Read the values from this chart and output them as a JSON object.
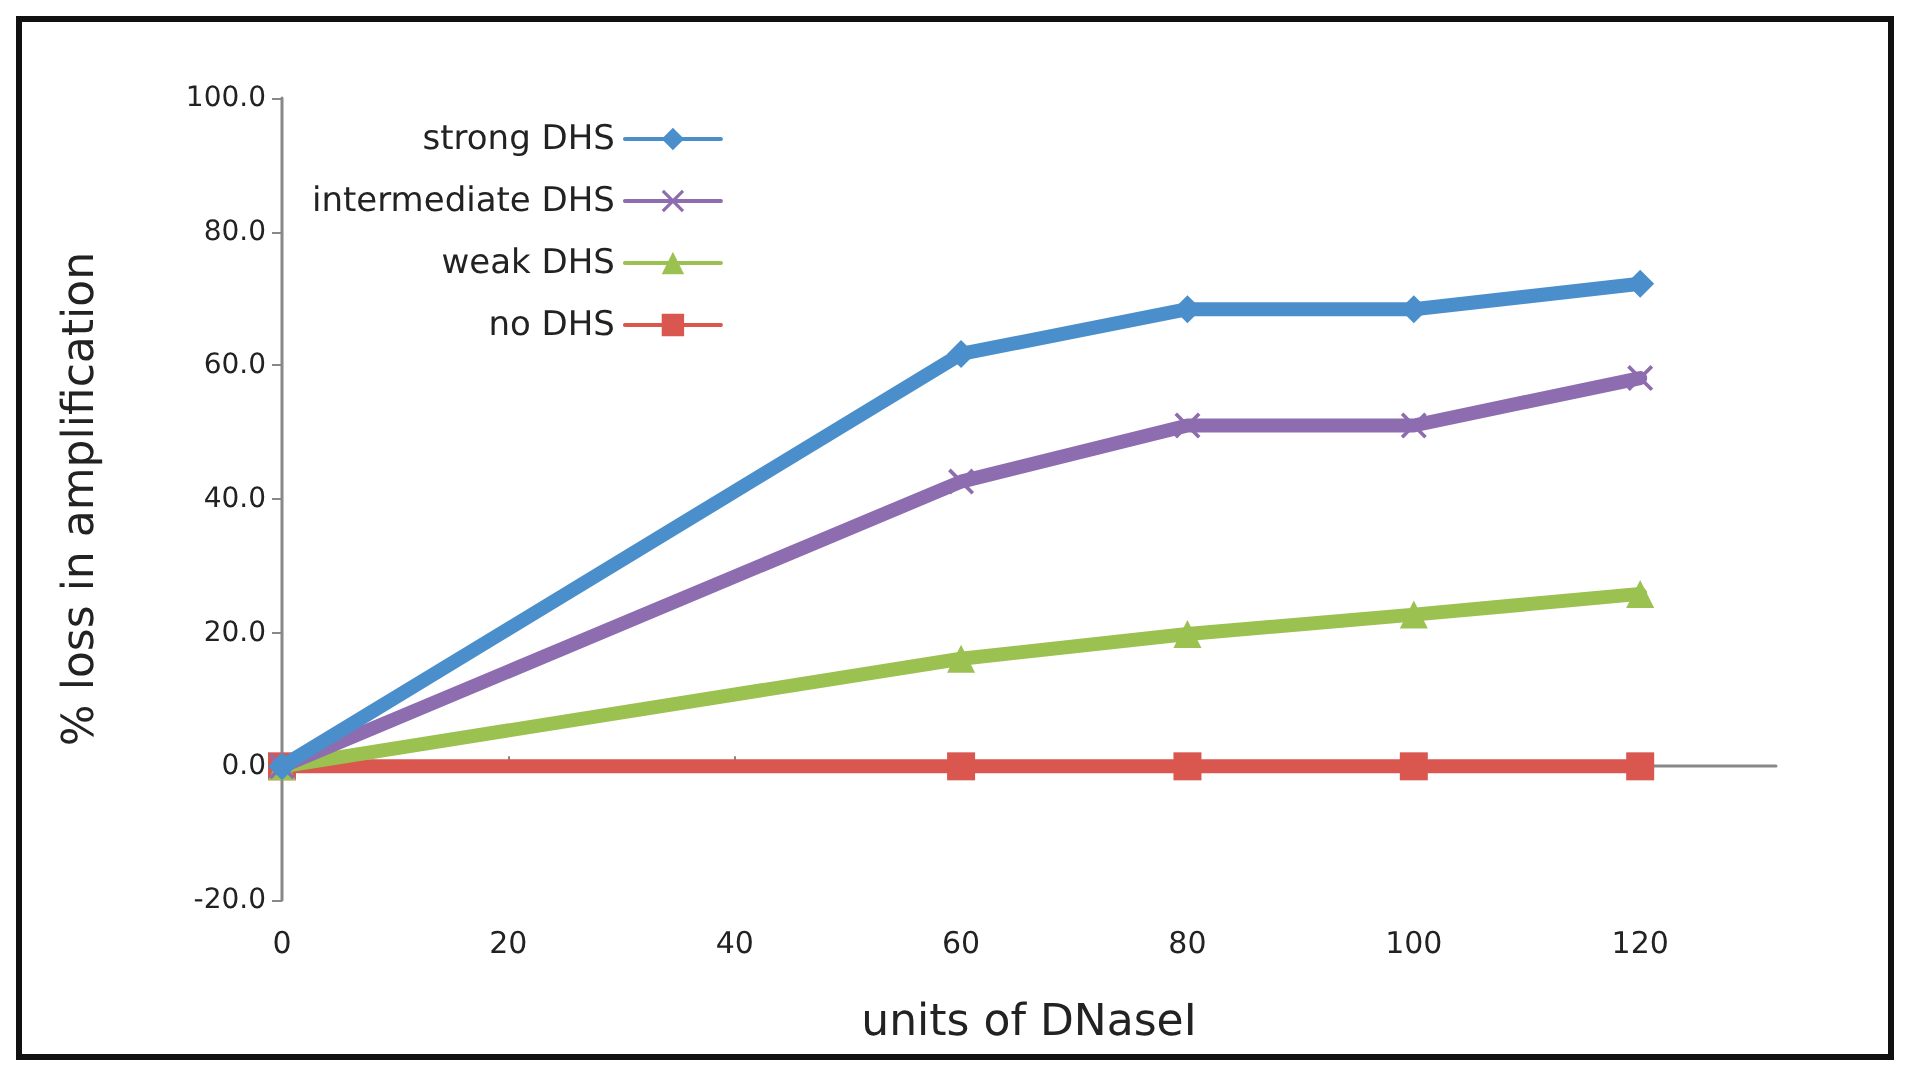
{
  "chart_data": {
    "type": "line",
    "xlabel": "units of DNaseI",
    "ylabel": "% loss in amplification",
    "x": [
      0,
      60,
      80,
      100,
      120
    ],
    "series": [
      {
        "name": "strong DHS",
        "color": "#4a8fcb",
        "marker": "diamond",
        "values": [
          0,
          61.7,
          68.4,
          68.4,
          72.2
        ]
      },
      {
        "name": "intermediate DHS",
        "color": "#8d6cb0",
        "marker": "cross",
        "values": [
          0,
          42.6,
          51.0,
          51.0,
          58.1
        ]
      },
      {
        "name": "weak DHS",
        "color": "#9bc150",
        "marker": "triangle",
        "values": [
          0,
          16.1,
          19.8,
          22.7,
          25.8
        ]
      },
      {
        "name": "no DHS",
        "color": "#d9574f",
        "marker": "square",
        "values": [
          0,
          0,
          0,
          0,
          0
        ]
      }
    ],
    "xlim": [
      0,
      132
    ],
    "xticks": [
      0,
      20,
      40,
      60,
      80,
      100,
      120
    ],
    "ylim": [
      -20,
      100
    ],
    "yticks": [
      {
        "value": -20,
        "label": "-20.0"
      },
      {
        "value": 0,
        "label": "0.0"
      },
      {
        "value": 20,
        "label": "20.0"
      },
      {
        "value": 40,
        "label": "40.0"
      },
      {
        "value": 60,
        "label": "60.0"
      },
      {
        "value": 80,
        "label": "80.0"
      },
      {
        "value": 100,
        "label": "100.0"
      }
    ],
    "legend": "top left",
    "line_style": "solid"
  }
}
